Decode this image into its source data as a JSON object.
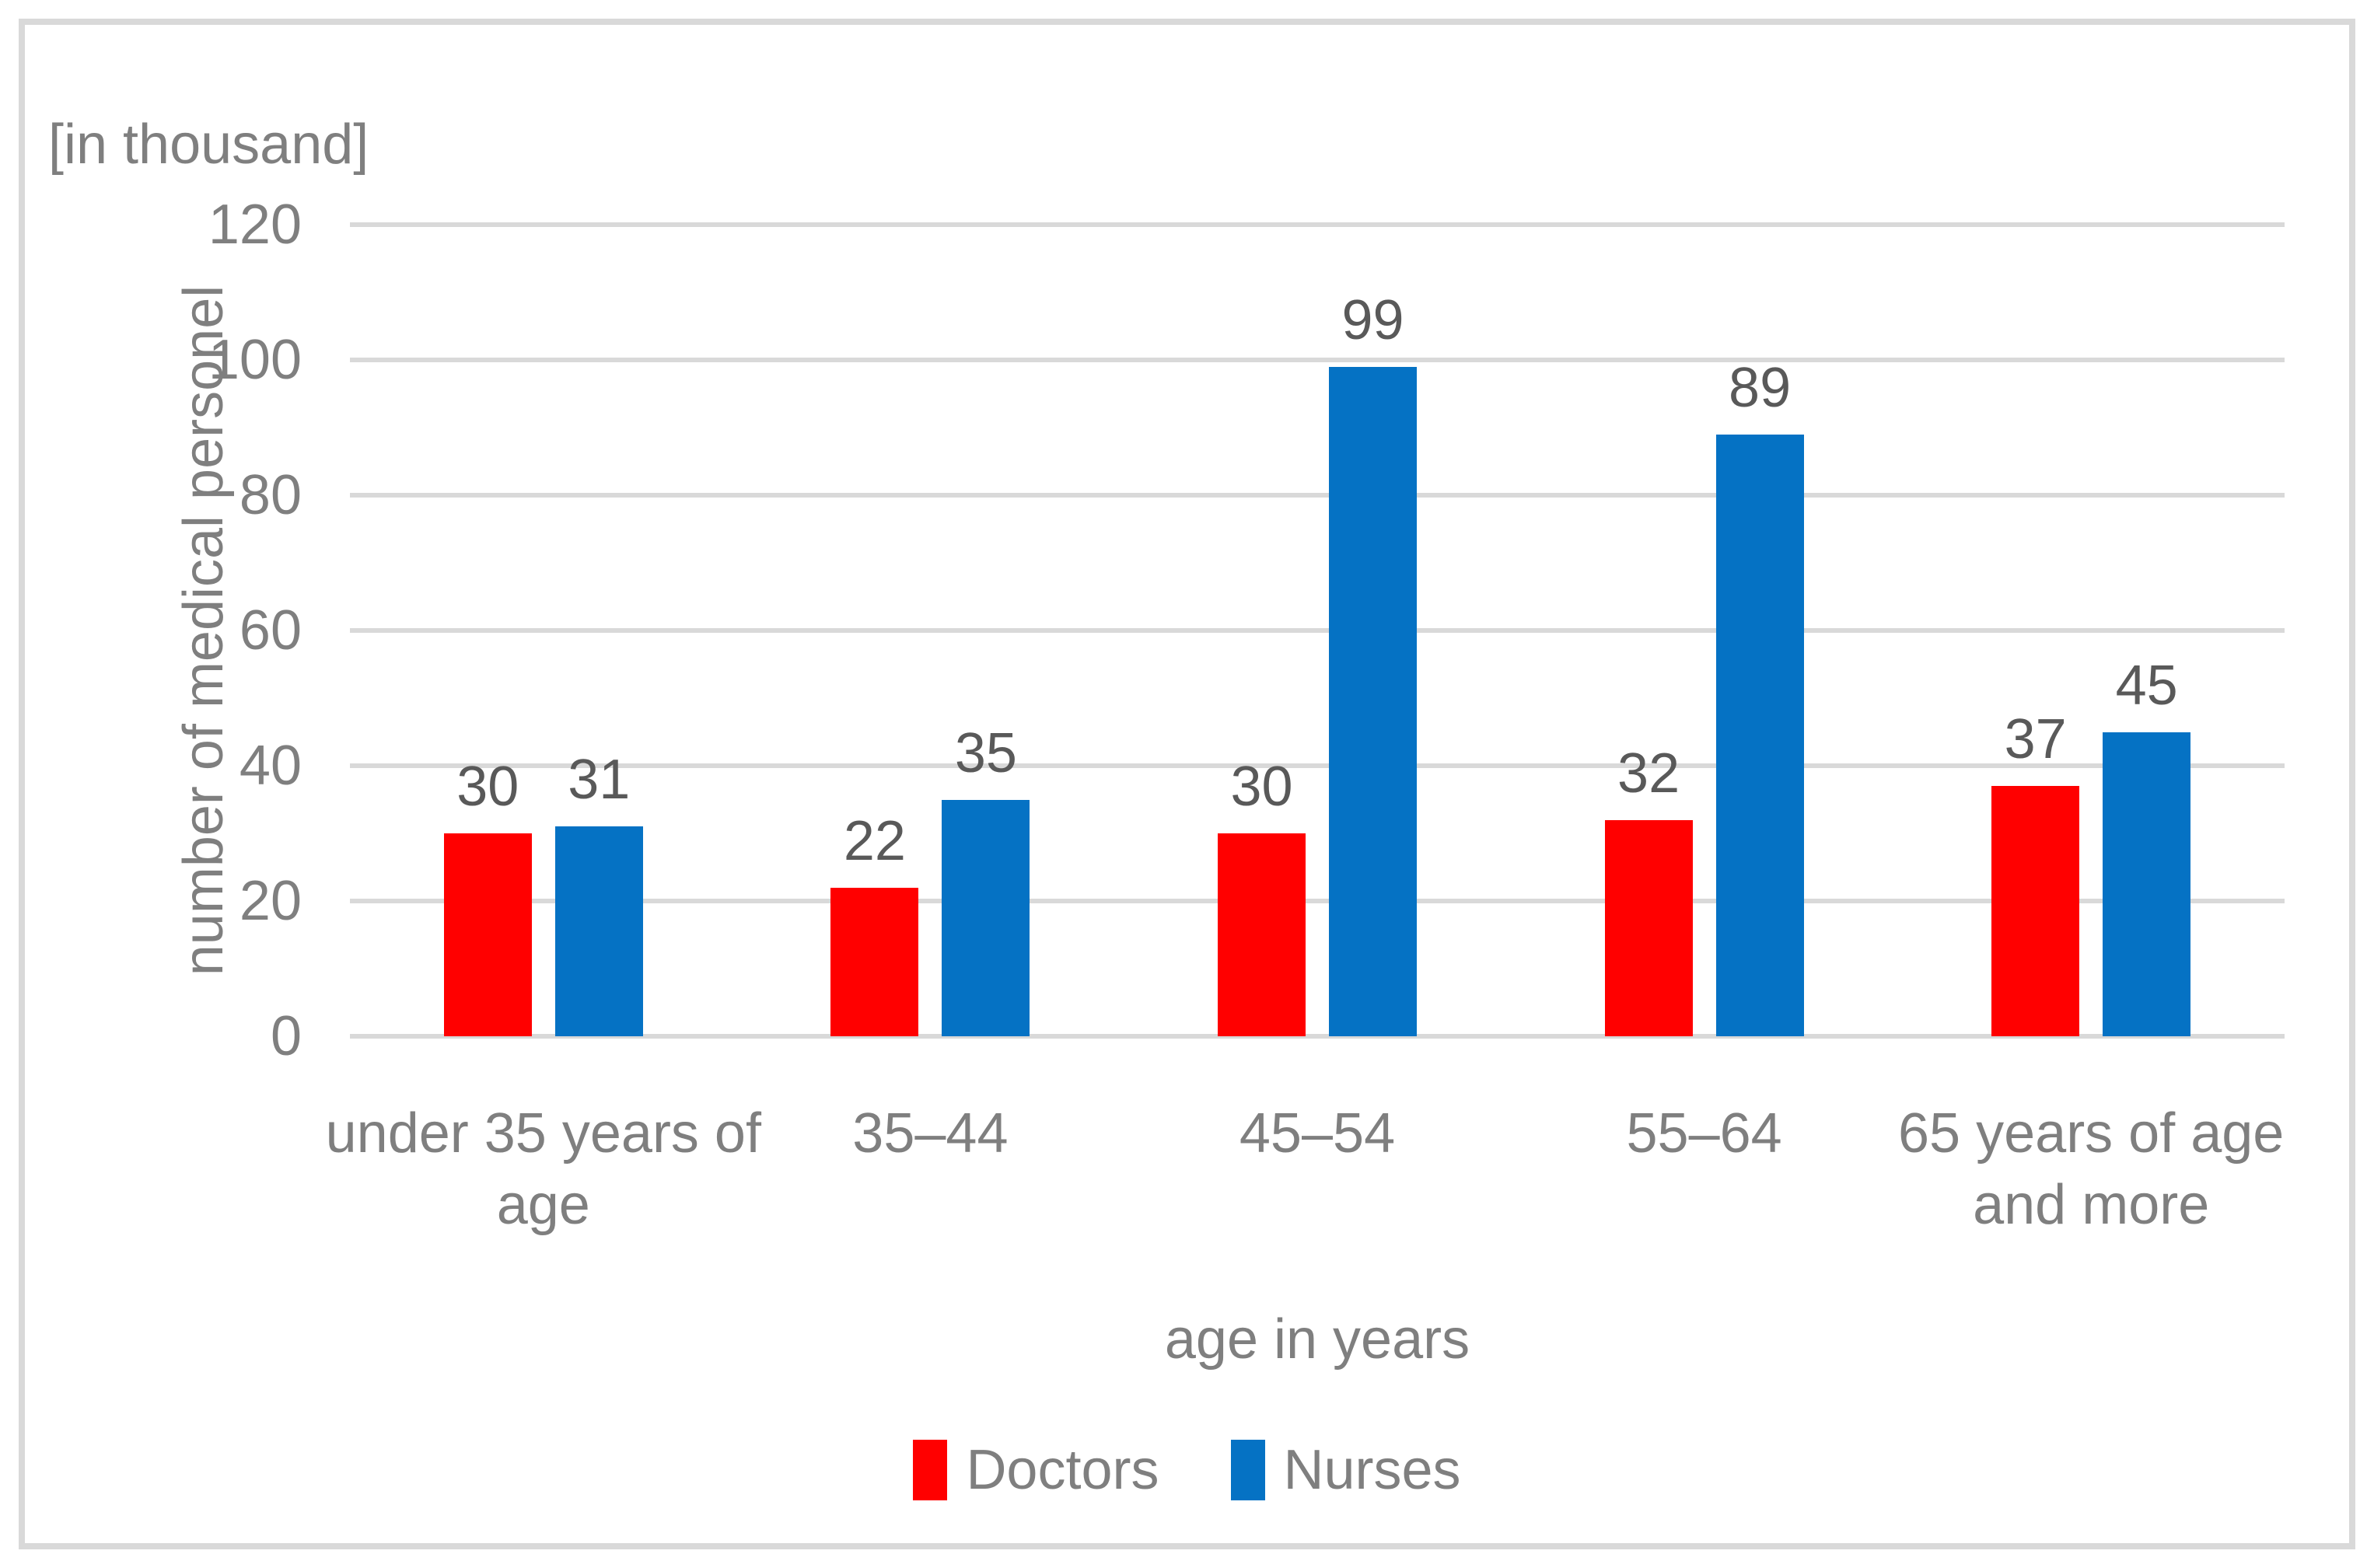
{
  "chart_data": {
    "type": "bar",
    "unit_label": "[in thousand]",
    "title": "",
    "xlabel": "age in years",
    "ylabel": "number of medical personel",
    "categories": [
      "under 35 years of age",
      "35–44",
      "45–54",
      "55–64",
      "65 years of age and more"
    ],
    "series": [
      {
        "name": "Doctors",
        "color": "#FF0000",
        "values": [
          30,
          22,
          30,
          32,
          37
        ]
      },
      {
        "name": "Nurses",
        "color": "#0572C4",
        "values": [
          31,
          35,
          99,
          89,
          45
        ]
      }
    ],
    "yticks": [
      0,
      20,
      40,
      60,
      80,
      100,
      120
    ],
    "ylim": [
      0,
      120
    ],
    "grid": true,
    "legend_position": "bottom"
  },
  "colors": {
    "gridline": "#D9D9D9",
    "frame_border": "#D9D9D9",
    "axis_text": "#7F7F7F",
    "value_label_text": "#595959",
    "background": "#FFFFFF"
  }
}
